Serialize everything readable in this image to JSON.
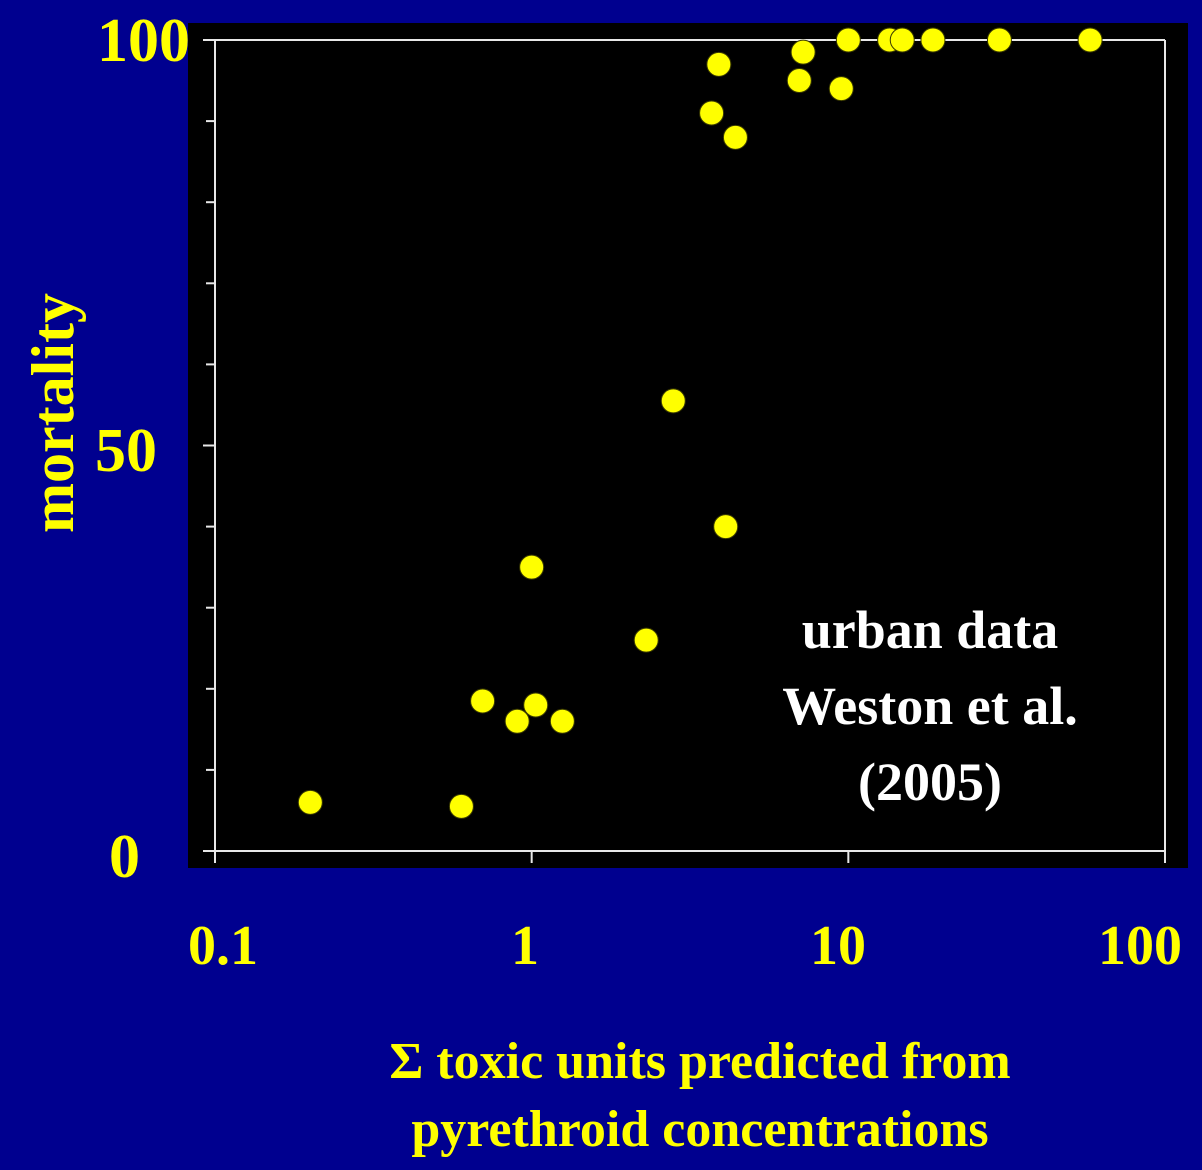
{
  "chart_data": {
    "type": "scatter",
    "x_scale": "log",
    "xlim": [
      0.1,
      100
    ],
    "ylim": [
      0,
      100
    ],
    "x_ticks": [
      "0.1",
      "1",
      "10",
      "100"
    ],
    "y_ticks": [
      "0",
      "50",
      "100"
    ],
    "ylabel": "mortality",
    "xlabel_lines": [
      "Σ toxic units predicted from",
      "pyrethroid concentrations"
    ],
    "annotation_lines": [
      "urban data",
      "Weston et al.",
      "(2005)"
    ],
    "grid": false,
    "marker_color": "#ffff00",
    "plot_background": "#000000",
    "page_background": "#00008f",
    "points": [
      {
        "x": 0.2,
        "y": 6
      },
      {
        "x": 0.6,
        "y": 5.5
      },
      {
        "x": 0.7,
        "y": 18.5
      },
      {
        "x": 0.9,
        "y": 16
      },
      {
        "x": 1.0,
        "y": 35
      },
      {
        "x": 1.03,
        "y": 18
      },
      {
        "x": 1.25,
        "y": 16
      },
      {
        "x": 2.3,
        "y": 26
      },
      {
        "x": 2.8,
        "y": 55.5
      },
      {
        "x": 3.7,
        "y": 91
      },
      {
        "x": 3.9,
        "y": 97
      },
      {
        "x": 4.1,
        "y": 40
      },
      {
        "x": 4.4,
        "y": 88
      },
      {
        "x": 7.0,
        "y": 95
      },
      {
        "x": 7.2,
        "y": 98.5
      },
      {
        "x": 9.5,
        "y": 94
      },
      {
        "x": 10,
        "y": 100
      },
      {
        "x": 13.5,
        "y": 100
      },
      {
        "x": 14.8,
        "y": 100
      },
      {
        "x": 18.5,
        "y": 100
      },
      {
        "x": 30,
        "y": 100
      },
      {
        "x": 58,
        "y": 100
      }
    ]
  }
}
